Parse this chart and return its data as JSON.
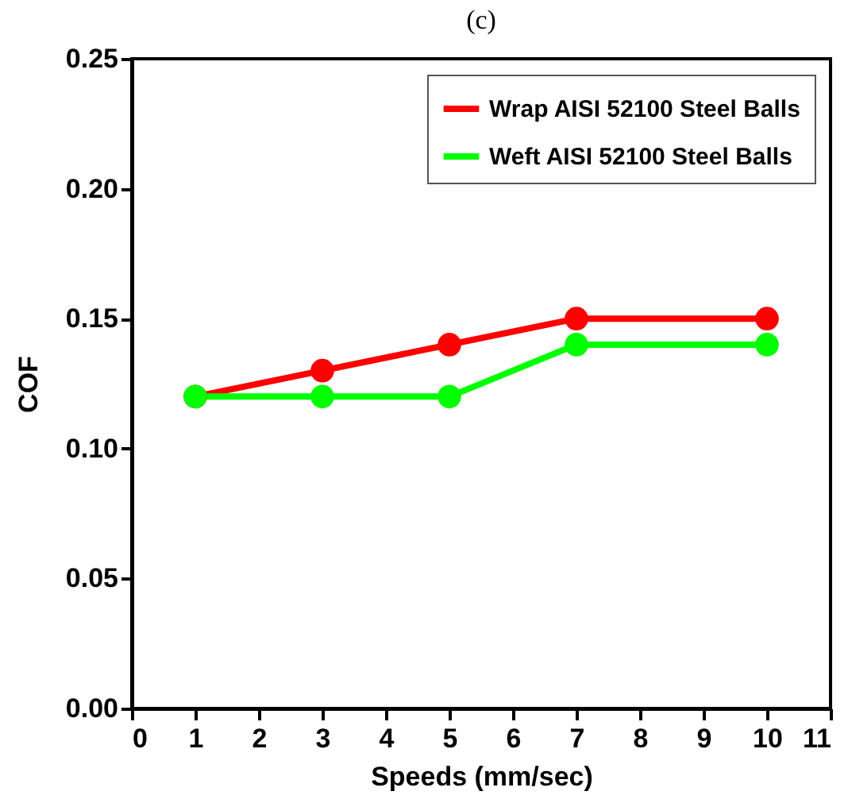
{
  "chart_data": {
    "type": "line",
    "title": "(c)",
    "xlabel": "Speeds (mm/sec)",
    "ylabel": "COF",
    "x": [
      1,
      3,
      5,
      7,
      10
    ],
    "series": [
      {
        "name": "Wrap AISI 52100 Steel Balls",
        "color": "#ff0000",
        "values": [
          0.12,
          0.13,
          0.14,
          0.15,
          0.15
        ]
      },
      {
        "name": "Weft AISI 52100 Steel Balls",
        "color": "#00ff00",
        "values": [
          0.12,
          0.12,
          0.12,
          0.14,
          0.14
        ]
      }
    ],
    "xlim": [
      0,
      11
    ],
    "xticks": [
      0,
      1,
      2,
      3,
      4,
      5,
      6,
      7,
      8,
      9,
      10,
      11
    ],
    "ylim": [
      0,
      0.25
    ],
    "yticks": [
      {
        "value": 0,
        "label": "0.00"
      },
      {
        "value": 0.05,
        "label": "0.05"
      },
      {
        "value": 0.1,
        "label": "0.10"
      },
      {
        "value": 0.15,
        "label": "0.15"
      },
      {
        "value": 0.2,
        "label": "0.20"
      },
      {
        "value": 0.25,
        "label": "0.25"
      }
    ],
    "legend": "top right",
    "marker": "circle",
    "line_style": "solid"
  }
}
